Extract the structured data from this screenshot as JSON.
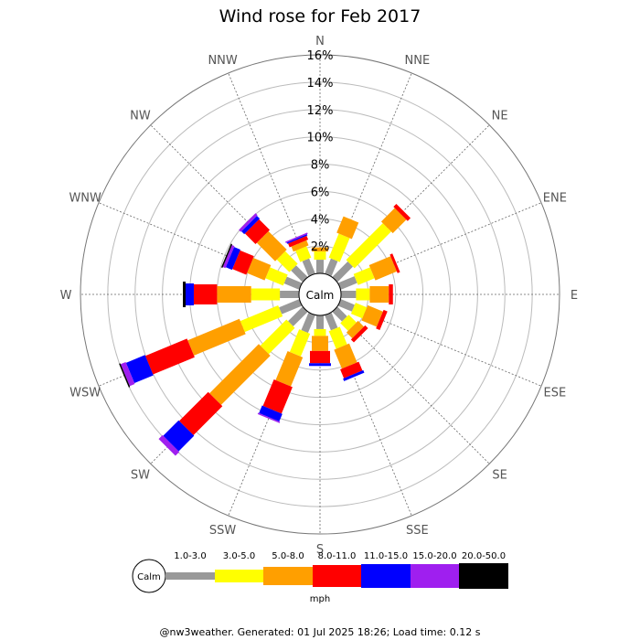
{
  "chart_data": {
    "type": "windrose",
    "title": "Wind rose for Feb 2017",
    "directions": [
      "N",
      "NNE",
      "NE",
      "ENE",
      "E",
      "ESE",
      "SE",
      "SSE",
      "S",
      "SSW",
      "SW",
      "WSW",
      "W",
      "WNW",
      "NW",
      "NNW"
    ],
    "radial_ticks": [
      "2%",
      "4%",
      "6%",
      "8%",
      "10%",
      "12%",
      "14%",
      "16%"
    ],
    "radial_max": 16,
    "radial_unit": "%",
    "calm_label": "Calm",
    "unit": "mph",
    "bins": [
      {
        "label": "1.0-3.0",
        "color": "#999999"
      },
      {
        "label": "3.0-5.0",
        "color": "#ffff00"
      },
      {
        "label": "5.0-8.0",
        "color": "#ff9f00"
      },
      {
        "label": "8.0-11.0",
        "color": "#ff0000"
      },
      {
        "label": "11.0-15.0",
        "color": "#0000ff"
      },
      {
        "label": "15.0-20.0",
        "color": "#9f1fef"
      },
      {
        "label": "20.0-50.0",
        "color": "#000000"
      }
    ],
    "series": [
      {
        "direction": "N",
        "values": [
          1.0,
          0.6,
          0.3,
          0.0,
          0.0,
          0.0,
          0.0
        ]
      },
      {
        "direction": "NNE",
        "values": [
          1.2,
          1.9,
          1.3,
          0.0,
          0.0,
          0.0,
          0.0
        ]
      },
      {
        "direction": "NE",
        "values": [
          1.6,
          3.8,
          1.4,
          0.3,
          0.0,
          0.0,
          0.0
        ]
      },
      {
        "direction": "ENE",
        "values": [
          1.3,
          1.3,
          1.7,
          0.2,
          0.0,
          0.0,
          0.0
        ]
      },
      {
        "direction": "E",
        "values": [
          1.1,
          1.0,
          1.4,
          0.3,
          0.0,
          0.0,
          0.0
        ]
      },
      {
        "direction": "ESE",
        "values": [
          1.1,
          0.9,
          1.2,
          0.3,
          0.0,
          0.0,
          0.0
        ]
      },
      {
        "direction": "SE",
        "values": [
          1.0,
          0.8,
          0.6,
          0.3,
          0.0,
          0.0,
          0.0
        ]
      },
      {
        "direction": "SSE",
        "values": [
          1.2,
          1.4,
          1.5,
          0.7,
          0.2,
          0.0,
          0.0
        ]
      },
      {
        "direction": "S",
        "values": [
          1.0,
          0.5,
          1.1,
          0.9,
          0.2,
          0.0,
          0.0
        ]
      },
      {
        "direction": "SSW",
        "values": [
          1.4,
          1.8,
          2.3,
          2.1,
          0.6,
          0.1,
          0.0
        ]
      },
      {
        "direction": "SW",
        "values": [
          1.5,
          2.7,
          5.1,
          3.0,
          1.6,
          0.4,
          0.0
        ]
      },
      {
        "direction": "WSW",
        "values": [
          1.6,
          3.0,
          4.1,
          3.3,
          1.5,
          0.4,
          0.1
        ]
      },
      {
        "direction": "W",
        "values": [
          1.4,
          2.1,
          2.5,
          1.7,
          0.6,
          0.0,
          0.2
        ]
      },
      {
        "direction": "WNW",
        "values": [
          1.2,
          1.4,
          1.4,
          1.1,
          0.5,
          0.2,
          0.1
        ]
      },
      {
        "direction": "NW",
        "values": [
          1.2,
          1.3,
          1.9,
          1.1,
          0.3,
          0.2,
          0.0
        ]
      },
      {
        "direction": "NNW",
        "values": [
          1.2,
          0.9,
          0.4,
          0.3,
          0.1,
          0.1,
          0.0
        ]
      }
    ],
    "footer": "@nw3weather. Generated: 01 Jul 2025 18:26; Load time: 0.12 s"
  }
}
